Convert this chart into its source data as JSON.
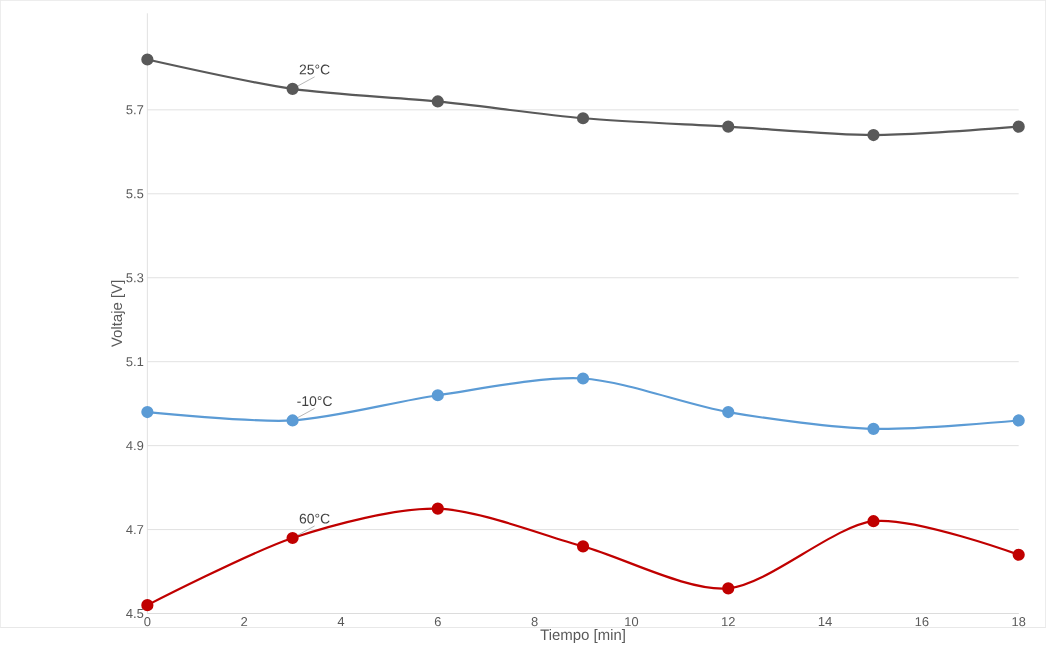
{
  "chart_data": {
    "type": "line",
    "xlabel": "Tiempo [min]",
    "ylabel": "Voltaje [V]",
    "x": [
      0,
      3,
      6,
      9,
      12,
      15,
      18
    ],
    "series": [
      {
        "name": "25°C",
        "color": "#595959",
        "values": [
          5.82,
          5.75,
          5.72,
          5.68,
          5.66,
          5.64,
          5.66
        ]
      },
      {
        "name": "-10°C",
        "color": "#5b9bd5",
        "values": [
          4.98,
          4.96,
          5.02,
          5.06,
          4.98,
          4.94,
          4.96
        ]
      },
      {
        "name": "60°C",
        "color": "#c00000",
        "values": [
          4.52,
          4.68,
          4.75,
          4.66,
          4.56,
          4.72,
          4.64
        ]
      }
    ],
    "xlim": [
      0,
      18
    ],
    "xticks": [
      0,
      2,
      4,
      6,
      8,
      10,
      12,
      14,
      16,
      18
    ],
    "ylim": [
      4.5,
      5.93
    ],
    "yticks": [
      4.5,
      4.7,
      4.9,
      5.1,
      5.3,
      5.5,
      5.7
    ],
    "grid": "y",
    "marker": "circle",
    "line_style": "solid",
    "legend": false
  }
}
